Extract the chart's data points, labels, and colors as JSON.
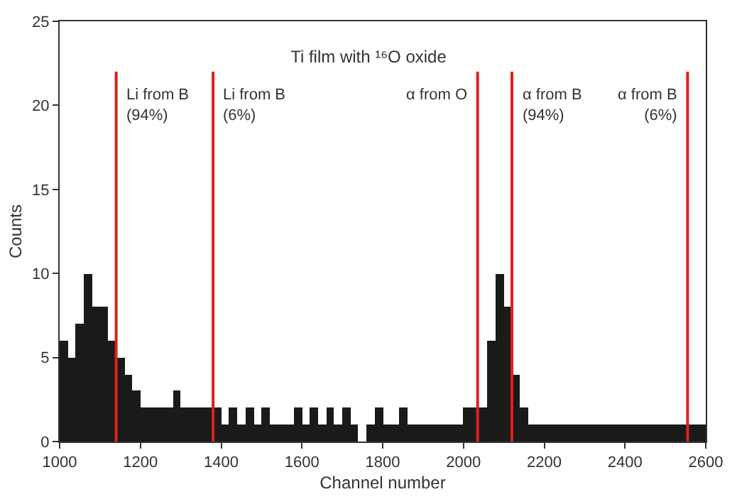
{
  "chart_data": {
    "type": "histogram",
    "title": "Ti film with ¹⁶O oxide",
    "xlabel": "Channel number",
    "ylabel": "Counts",
    "bins": [
      1000,
      1020,
      1040,
      1060,
      1080,
      1100,
      1120,
      1140,
      1160,
      1180,
      1200,
      1220,
      1240,
      1260,
      1280,
      1300,
      1320,
      1340,
      1360,
      1380,
      1400,
      1420,
      1440,
      1460,
      1480,
      1500,
      1520,
      1540,
      1560,
      1580,
      1600,
      1620,
      1640,
      1660,
      1680,
      1700,
      1720,
      1740,
      1760,
      1780,
      1800,
      1820,
      1840,
      1860,
      1880,
      1900,
      1920,
      1940,
      1960,
      1980,
      2000,
      2020,
      2040,
      2060,
      2080,
      2100,
      2120,
      2140,
      2160,
      2180,
      2200,
      2220,
      2240,
      2260,
      2280,
      2300,
      2320,
      2340,
      2360,
      2380,
      2400,
      2420,
      2440,
      2460,
      2480,
      2500,
      2520,
      2540,
      2560,
      2580,
      2600
    ],
    "values": [
      6,
      5,
      7,
      10,
      8,
      8,
      6,
      5,
      4,
      3,
      2,
      2,
      2,
      2,
      3,
      2,
      2,
      2,
      2,
      2,
      1,
      2,
      1,
      2,
      1,
      2,
      1,
      1,
      1,
      2,
      1,
      2,
      1,
      2,
      1,
      2,
      1,
      0,
      1,
      2,
      1,
      1,
      2,
      1,
      1,
      1,
      1,
      1,
      1,
      1,
      2,
      2,
      2,
      6,
      10,
      8,
      4,
      2,
      1,
      1,
      1,
      1,
      1,
      1,
      1,
      1,
      1,
      1,
      1,
      1,
      1,
      1,
      1,
      1,
      1,
      1,
      1,
      1,
      1,
      1
    ],
    "color": "#1a1a1a",
    "xlim": [
      1000,
      2600
    ],
    "xticks": [
      1000,
      1200,
      1400,
      1600,
      1800,
      2000,
      2200,
      2400,
      2600
    ],
    "ylim": [
      0,
      25
    ],
    "yticks": [
      0,
      5,
      10,
      15,
      20,
      25
    ],
    "ref_lines": [
      {
        "axis": "x",
        "value": 1140,
        "color": "#e0201b",
        "label": "Li from B\n(94%)"
      },
      {
        "axis": "x",
        "value": 1380,
        "color": "#e0201b",
        "label": "Li from B\n(6%)"
      },
      {
        "axis": "x",
        "value": 2035,
        "color": "#e0201b",
        "label": "α from O"
      },
      {
        "axis": "x",
        "value": 2120,
        "color": "#e0201b",
        "label": "α from B\n(94%)"
      },
      {
        "axis": "x",
        "value": 2555,
        "color": "#e0201b",
        "label": "α from B\n(6%)"
      }
    ]
  }
}
